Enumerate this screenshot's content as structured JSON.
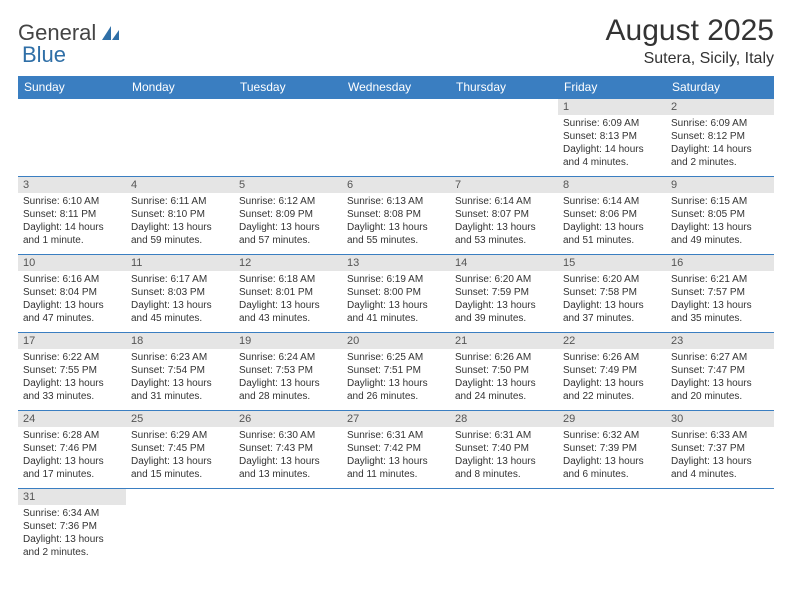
{
  "logo": {
    "text1": "General",
    "text2": "Blue"
  },
  "header": {
    "month": "August 2025",
    "location": "Sutera, Sicily, Italy"
  },
  "colors": {
    "header_bg": "#3a7ec1",
    "header_text": "#ffffff",
    "daynum_bg": "#e5e5e5",
    "cell_border": "#3a7ec1",
    "logo_blue": "#2f6fa7"
  },
  "weekdays": [
    "Sunday",
    "Monday",
    "Tuesday",
    "Wednesday",
    "Thursday",
    "Friday",
    "Saturday"
  ],
  "weeks": [
    [
      {
        "day": "",
        "sunrise": "",
        "sunset": "",
        "daylight": ""
      },
      {
        "day": "",
        "sunrise": "",
        "sunset": "",
        "daylight": ""
      },
      {
        "day": "",
        "sunrise": "",
        "sunset": "",
        "daylight": ""
      },
      {
        "day": "",
        "sunrise": "",
        "sunset": "",
        "daylight": ""
      },
      {
        "day": "",
        "sunrise": "",
        "sunset": "",
        "daylight": ""
      },
      {
        "day": "1",
        "sunrise": "Sunrise: 6:09 AM",
        "sunset": "Sunset: 8:13 PM",
        "daylight": "Daylight: 14 hours and 4 minutes."
      },
      {
        "day": "2",
        "sunrise": "Sunrise: 6:09 AM",
        "sunset": "Sunset: 8:12 PM",
        "daylight": "Daylight: 14 hours and 2 minutes."
      }
    ],
    [
      {
        "day": "3",
        "sunrise": "Sunrise: 6:10 AM",
        "sunset": "Sunset: 8:11 PM",
        "daylight": "Daylight: 14 hours and 1 minute."
      },
      {
        "day": "4",
        "sunrise": "Sunrise: 6:11 AM",
        "sunset": "Sunset: 8:10 PM",
        "daylight": "Daylight: 13 hours and 59 minutes."
      },
      {
        "day": "5",
        "sunrise": "Sunrise: 6:12 AM",
        "sunset": "Sunset: 8:09 PM",
        "daylight": "Daylight: 13 hours and 57 minutes."
      },
      {
        "day": "6",
        "sunrise": "Sunrise: 6:13 AM",
        "sunset": "Sunset: 8:08 PM",
        "daylight": "Daylight: 13 hours and 55 minutes."
      },
      {
        "day": "7",
        "sunrise": "Sunrise: 6:14 AM",
        "sunset": "Sunset: 8:07 PM",
        "daylight": "Daylight: 13 hours and 53 minutes."
      },
      {
        "day": "8",
        "sunrise": "Sunrise: 6:14 AM",
        "sunset": "Sunset: 8:06 PM",
        "daylight": "Daylight: 13 hours and 51 minutes."
      },
      {
        "day": "9",
        "sunrise": "Sunrise: 6:15 AM",
        "sunset": "Sunset: 8:05 PM",
        "daylight": "Daylight: 13 hours and 49 minutes."
      }
    ],
    [
      {
        "day": "10",
        "sunrise": "Sunrise: 6:16 AM",
        "sunset": "Sunset: 8:04 PM",
        "daylight": "Daylight: 13 hours and 47 minutes."
      },
      {
        "day": "11",
        "sunrise": "Sunrise: 6:17 AM",
        "sunset": "Sunset: 8:03 PM",
        "daylight": "Daylight: 13 hours and 45 minutes."
      },
      {
        "day": "12",
        "sunrise": "Sunrise: 6:18 AM",
        "sunset": "Sunset: 8:01 PM",
        "daylight": "Daylight: 13 hours and 43 minutes."
      },
      {
        "day": "13",
        "sunrise": "Sunrise: 6:19 AM",
        "sunset": "Sunset: 8:00 PM",
        "daylight": "Daylight: 13 hours and 41 minutes."
      },
      {
        "day": "14",
        "sunrise": "Sunrise: 6:20 AM",
        "sunset": "Sunset: 7:59 PM",
        "daylight": "Daylight: 13 hours and 39 minutes."
      },
      {
        "day": "15",
        "sunrise": "Sunrise: 6:20 AM",
        "sunset": "Sunset: 7:58 PM",
        "daylight": "Daylight: 13 hours and 37 minutes."
      },
      {
        "day": "16",
        "sunrise": "Sunrise: 6:21 AM",
        "sunset": "Sunset: 7:57 PM",
        "daylight": "Daylight: 13 hours and 35 minutes."
      }
    ],
    [
      {
        "day": "17",
        "sunrise": "Sunrise: 6:22 AM",
        "sunset": "Sunset: 7:55 PM",
        "daylight": "Daylight: 13 hours and 33 minutes."
      },
      {
        "day": "18",
        "sunrise": "Sunrise: 6:23 AM",
        "sunset": "Sunset: 7:54 PM",
        "daylight": "Daylight: 13 hours and 31 minutes."
      },
      {
        "day": "19",
        "sunrise": "Sunrise: 6:24 AM",
        "sunset": "Sunset: 7:53 PM",
        "daylight": "Daylight: 13 hours and 28 minutes."
      },
      {
        "day": "20",
        "sunrise": "Sunrise: 6:25 AM",
        "sunset": "Sunset: 7:51 PM",
        "daylight": "Daylight: 13 hours and 26 minutes."
      },
      {
        "day": "21",
        "sunrise": "Sunrise: 6:26 AM",
        "sunset": "Sunset: 7:50 PM",
        "daylight": "Daylight: 13 hours and 24 minutes."
      },
      {
        "day": "22",
        "sunrise": "Sunrise: 6:26 AM",
        "sunset": "Sunset: 7:49 PM",
        "daylight": "Daylight: 13 hours and 22 minutes."
      },
      {
        "day": "23",
        "sunrise": "Sunrise: 6:27 AM",
        "sunset": "Sunset: 7:47 PM",
        "daylight": "Daylight: 13 hours and 20 minutes."
      }
    ],
    [
      {
        "day": "24",
        "sunrise": "Sunrise: 6:28 AM",
        "sunset": "Sunset: 7:46 PM",
        "daylight": "Daylight: 13 hours and 17 minutes."
      },
      {
        "day": "25",
        "sunrise": "Sunrise: 6:29 AM",
        "sunset": "Sunset: 7:45 PM",
        "daylight": "Daylight: 13 hours and 15 minutes."
      },
      {
        "day": "26",
        "sunrise": "Sunrise: 6:30 AM",
        "sunset": "Sunset: 7:43 PM",
        "daylight": "Daylight: 13 hours and 13 minutes."
      },
      {
        "day": "27",
        "sunrise": "Sunrise: 6:31 AM",
        "sunset": "Sunset: 7:42 PM",
        "daylight": "Daylight: 13 hours and 11 minutes."
      },
      {
        "day": "28",
        "sunrise": "Sunrise: 6:31 AM",
        "sunset": "Sunset: 7:40 PM",
        "daylight": "Daylight: 13 hours and 8 minutes."
      },
      {
        "day": "29",
        "sunrise": "Sunrise: 6:32 AM",
        "sunset": "Sunset: 7:39 PM",
        "daylight": "Daylight: 13 hours and 6 minutes."
      },
      {
        "day": "30",
        "sunrise": "Sunrise: 6:33 AM",
        "sunset": "Sunset: 7:37 PM",
        "daylight": "Daylight: 13 hours and 4 minutes."
      }
    ],
    [
      {
        "day": "31",
        "sunrise": "Sunrise: 6:34 AM",
        "sunset": "Sunset: 7:36 PM",
        "daylight": "Daylight: 13 hours and 2 minutes."
      },
      {
        "day": "",
        "sunrise": "",
        "sunset": "",
        "daylight": ""
      },
      {
        "day": "",
        "sunrise": "",
        "sunset": "",
        "daylight": ""
      },
      {
        "day": "",
        "sunrise": "",
        "sunset": "",
        "daylight": ""
      },
      {
        "day": "",
        "sunrise": "",
        "sunset": "",
        "daylight": ""
      },
      {
        "day": "",
        "sunrise": "",
        "sunset": "",
        "daylight": ""
      },
      {
        "day": "",
        "sunrise": "",
        "sunset": "",
        "daylight": ""
      }
    ]
  ]
}
